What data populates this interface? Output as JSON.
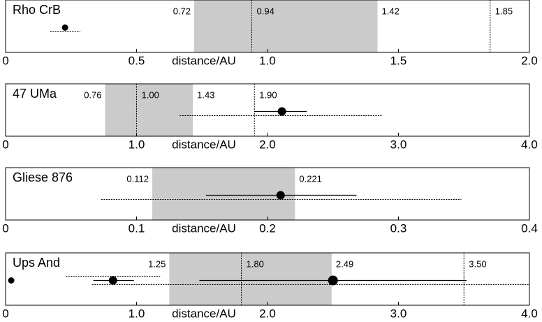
{
  "chart_data": [
    {
      "type": "zone",
      "title": "Rho CrB",
      "xlabel": "distance/AU",
      "xlim": [
        0,
        2
      ],
      "xticks": [
        0,
        0.5,
        {
          "value": 1,
          "label": "1.0"
        },
        1.5,
        {
          "value": 2,
          "label": "2.0"
        }
      ],
      "zone": [
        0.72,
        1.42
      ],
      "zone_color": "#cbcbcb",
      "markers": [
        0.94,
        1.85
      ],
      "planets": [
        {
          "x": 0.227,
          "marker_size": 4.5,
          "extent": [
            0.17,
            0.285
          ]
        }
      ]
    },
    {
      "type": "zone",
      "title": "47 UMa",
      "xlabel": "distance/AU",
      "xlim": [
        0,
        4
      ],
      "xticks": [
        0,
        {
          "value": 1,
          "label": "1.0"
        },
        {
          "value": 2,
          "label": "2.0"
        },
        {
          "value": 3,
          "label": "3.0"
        },
        {
          "value": 4,
          "label": "4.0"
        }
      ],
      "zone": [
        0.76,
        1.43
      ],
      "zone_color": "#cbcbcb",
      "markers": [
        {
          "value": 1,
          "label": "1.00"
        },
        {
          "value": 1.9,
          "label": "1.90"
        }
      ],
      "planets": [
        {
          "x": 2.11,
          "marker_size": 6,
          "range": [
            1.9,
            2.3
          ],
          "extent": [
            1.33,
            2.88
          ]
        }
      ]
    },
    {
      "type": "zone",
      "title": "Gliese 876",
      "xlabel": "distance/AU",
      "xlim": [
        0,
        0.4
      ],
      "xticks": [
        0,
        0.1,
        0.2,
        0.3,
        0.4
      ],
      "zone": [
        0.112,
        0.221
      ],
      "zone_color": "#cbcbcb",
      "markers": [],
      "planets": [
        {
          "x": 0.21,
          "marker_size": 6,
          "range": [
            0.153,
            0.268
          ],
          "extent": [
            0.073,
            0.348
          ]
        }
      ]
    },
    {
      "type": "zone",
      "title": "Ups And",
      "xlabel": "distance/AU",
      "xlim": [
        0,
        4
      ],
      "xticks": [
        0,
        {
          "value": 1,
          "label": "1.0"
        },
        {
          "value": 2,
          "label": "2.0"
        },
        {
          "value": 3,
          "label": "3.0"
        },
        {
          "value": 4,
          "label": "4.0"
        }
      ],
      "zone": [
        1.25,
        2.49
      ],
      "zone_color": "#cbcbcb",
      "markers": [
        {
          "value": 1.8,
          "label": "1.80"
        },
        {
          "value": 3.5,
          "label": "3.50"
        }
      ],
      "planets": [
        {
          "x": 0.043,
          "marker_size": 4.5
        },
        {
          "x": 0.82,
          "marker_size": 6,
          "range": [
            0.67,
            0.98
          ],
          "extent": [
            0.46,
            1.18
          ]
        },
        {
          "x": 2.5,
          "marker_size": 7,
          "range": [
            1.48,
            3.52
          ],
          "extent": [
            0.66,
            4.0
          ]
        }
      ]
    }
  ]
}
